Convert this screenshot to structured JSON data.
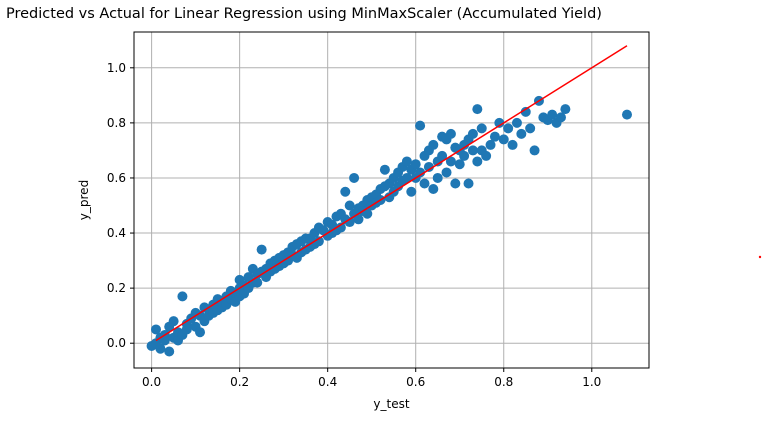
{
  "chart_data": {
    "type": "scatter",
    "title": "Predicted vs Actual for Linear Regression using MinMaxScaler (Accumulated Yield)",
    "xlabel": "y_test",
    "ylabel": "y_pred",
    "xlim": [
      -0.04,
      1.13
    ],
    "ylim": [
      -0.09,
      1.13
    ],
    "xticks": [
      0.0,
      0.2,
      0.4,
      0.6,
      0.8,
      1.0
    ],
    "yticks": [
      0.0,
      0.2,
      0.4,
      0.6,
      0.8,
      1.0
    ],
    "xtick_labels": [
      "0.0",
      "0.2",
      "0.4",
      "0.6",
      "0.8",
      "1.0"
    ],
    "ytick_labels": [
      "0.0",
      "0.2",
      "0.4",
      "0.6",
      "0.8",
      "1.0"
    ],
    "grid": true,
    "colors": {
      "points": "#1f77b4",
      "line": "#ff0000",
      "grid": "#b0b0b0"
    },
    "reference_line": {
      "x": [
        0.01,
        1.08
      ],
      "y": [
        0.01,
        1.08
      ]
    },
    "series": [
      {
        "points": [
          [
            0.0,
            -0.01
          ],
          [
            0.01,
            0.05
          ],
          [
            0.01,
            0.0
          ],
          [
            0.02,
            0.02
          ],
          [
            0.02,
            -0.02
          ],
          [
            0.03,
            0.03
          ],
          [
            0.03,
            0.01
          ],
          [
            0.04,
            -0.03
          ],
          [
            0.04,
            0.06
          ],
          [
            0.05,
            0.02
          ],
          [
            0.05,
            0.08
          ],
          [
            0.06,
            0.04
          ],
          [
            0.06,
            0.01
          ],
          [
            0.07,
            0.03
          ],
          [
            0.07,
            0.17
          ],
          [
            0.08,
            0.07
          ],
          [
            0.08,
            0.05
          ],
          [
            0.09,
            0.09
          ],
          [
            0.1,
            0.06
          ],
          [
            0.1,
            0.11
          ],
          [
            0.11,
            0.1
          ],
          [
            0.11,
            0.04
          ],
          [
            0.12,
            0.13
          ],
          [
            0.12,
            0.08
          ],
          [
            0.13,
            0.12
          ],
          [
            0.13,
            0.1
          ],
          [
            0.14,
            0.14
          ],
          [
            0.14,
            0.11
          ],
          [
            0.15,
            0.12
          ],
          [
            0.15,
            0.16
          ],
          [
            0.16,
            0.13
          ],
          [
            0.16,
            0.15
          ],
          [
            0.17,
            0.17
          ],
          [
            0.17,
            0.14
          ],
          [
            0.18,
            0.16
          ],
          [
            0.18,
            0.19
          ],
          [
            0.19,
            0.18
          ],
          [
            0.19,
            0.15
          ],
          [
            0.2,
            0.2
          ],
          [
            0.2,
            0.17
          ],
          [
            0.2,
            0.23
          ],
          [
            0.21,
            0.21
          ],
          [
            0.21,
            0.18
          ],
          [
            0.22,
            0.24
          ],
          [
            0.22,
            0.2
          ],
          [
            0.23,
            0.22
          ],
          [
            0.23,
            0.27
          ],
          [
            0.24,
            0.25
          ],
          [
            0.24,
            0.22
          ],
          [
            0.25,
            0.26
          ],
          [
            0.25,
            0.34
          ],
          [
            0.26,
            0.27
          ],
          [
            0.26,
            0.24
          ],
          [
            0.27,
            0.29
          ],
          [
            0.27,
            0.26
          ],
          [
            0.28,
            0.3
          ],
          [
            0.28,
            0.27
          ],
          [
            0.29,
            0.31
          ],
          [
            0.29,
            0.28
          ],
          [
            0.3,
            0.32
          ],
          [
            0.3,
            0.29
          ],
          [
            0.31,
            0.33
          ],
          [
            0.31,
            0.3
          ],
          [
            0.32,
            0.35
          ],
          [
            0.32,
            0.32
          ],
          [
            0.33,
            0.36
          ],
          [
            0.33,
            0.31
          ],
          [
            0.34,
            0.37
          ],
          [
            0.34,
            0.33
          ],
          [
            0.35,
            0.38
          ],
          [
            0.35,
            0.34
          ],
          [
            0.36,
            0.38
          ],
          [
            0.36,
            0.35
          ],
          [
            0.37,
            0.4
          ],
          [
            0.37,
            0.36
          ],
          [
            0.38,
            0.42
          ],
          [
            0.38,
            0.37
          ],
          [
            0.39,
            0.41
          ],
          [
            0.4,
            0.44
          ],
          [
            0.4,
            0.39
          ],
          [
            0.41,
            0.43
          ],
          [
            0.41,
            0.4
          ],
          [
            0.42,
            0.46
          ],
          [
            0.42,
            0.41
          ],
          [
            0.43,
            0.42
          ],
          [
            0.43,
            0.47
          ],
          [
            0.44,
            0.45
          ],
          [
            0.44,
            0.55
          ],
          [
            0.45,
            0.44
          ],
          [
            0.45,
            0.5
          ],
          [
            0.46,
            0.47
          ],
          [
            0.46,
            0.6
          ],
          [
            0.47,
            0.49
          ],
          [
            0.47,
            0.45
          ],
          [
            0.48,
            0.5
          ],
          [
            0.48,
            0.48
          ],
          [
            0.49,
            0.52
          ],
          [
            0.49,
            0.47
          ],
          [
            0.5,
            0.53
          ],
          [
            0.5,
            0.5
          ],
          [
            0.51,
            0.54
          ],
          [
            0.51,
            0.51
          ],
          [
            0.52,
            0.56
          ],
          [
            0.52,
            0.52
          ],
          [
            0.53,
            0.57
          ],
          [
            0.53,
            0.63
          ],
          [
            0.54,
            0.58
          ],
          [
            0.54,
            0.53
          ],
          [
            0.55,
            0.6
          ],
          [
            0.55,
            0.55
          ],
          [
            0.56,
            0.62
          ],
          [
            0.56,
            0.57
          ],
          [
            0.57,
            0.64
          ],
          [
            0.57,
            0.59
          ],
          [
            0.58,
            0.6
          ],
          [
            0.58,
            0.66
          ],
          [
            0.59,
            0.55
          ],
          [
            0.59,
            0.63
          ],
          [
            0.6,
            0.65
          ],
          [
            0.6,
            0.6
          ],
          [
            0.61,
            0.79
          ],
          [
            0.61,
            0.62
          ],
          [
            0.62,
            0.68
          ],
          [
            0.62,
            0.58
          ],
          [
            0.63,
            0.7
          ],
          [
            0.63,
            0.64
          ],
          [
            0.64,
            0.72
          ],
          [
            0.64,
            0.56
          ],
          [
            0.65,
            0.66
          ],
          [
            0.65,
            0.6
          ],
          [
            0.66,
            0.75
          ],
          [
            0.66,
            0.68
          ],
          [
            0.67,
            0.74
          ],
          [
            0.67,
            0.62
          ],
          [
            0.68,
            0.76
          ],
          [
            0.68,
            0.66
          ],
          [
            0.69,
            0.71
          ],
          [
            0.69,
            0.58
          ],
          [
            0.7,
            0.65
          ],
          [
            0.7,
            0.7
          ],
          [
            0.71,
            0.72
          ],
          [
            0.71,
            0.68
          ],
          [
            0.72,
            0.74
          ],
          [
            0.72,
            0.58
          ],
          [
            0.73,
            0.7
          ],
          [
            0.73,
            0.76
          ],
          [
            0.74,
            0.85
          ],
          [
            0.74,
            0.66
          ],
          [
            0.75,
            0.7
          ],
          [
            0.75,
            0.78
          ],
          [
            0.76,
            0.68
          ],
          [
            0.77,
            0.72
          ],
          [
            0.78,
            0.75
          ],
          [
            0.79,
            0.8
          ],
          [
            0.8,
            0.74
          ],
          [
            0.81,
            0.78
          ],
          [
            0.82,
            0.72
          ],
          [
            0.83,
            0.8
          ],
          [
            0.84,
            0.76
          ],
          [
            0.85,
            0.84
          ],
          [
            0.86,
            0.78
          ],
          [
            0.87,
            0.7
          ],
          [
            0.88,
            0.88
          ],
          [
            0.89,
            0.82
          ],
          [
            0.9,
            0.81
          ],
          [
            0.91,
            0.83
          ],
          [
            0.92,
            0.8
          ],
          [
            0.93,
            0.82
          ],
          [
            0.94,
            0.85
          ],
          [
            1.08,
            0.83
          ]
        ]
      }
    ]
  }
}
